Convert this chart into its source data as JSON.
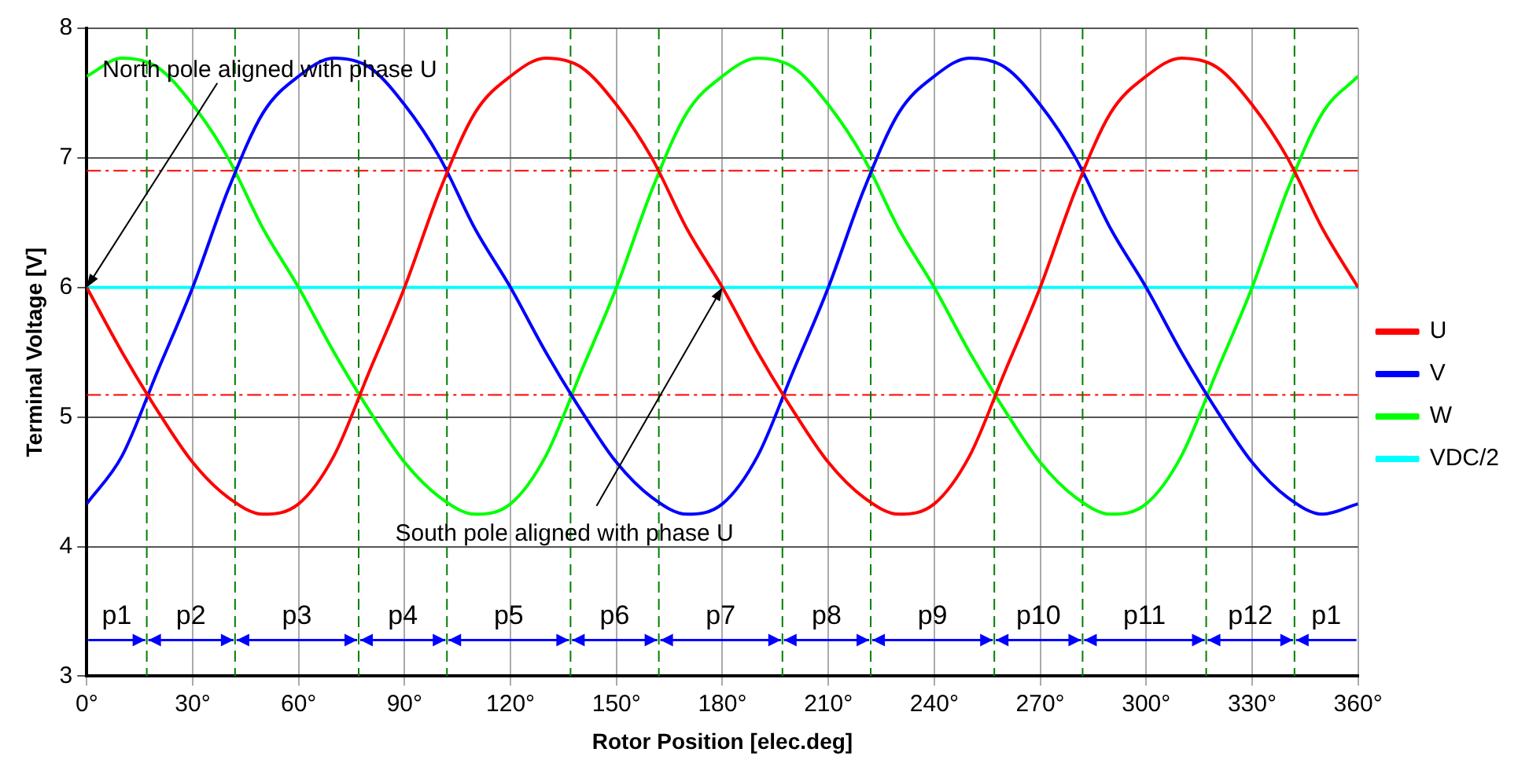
{
  "chart_data": {
    "type": "line",
    "xlabel": "Rotor Position [elec.deg]",
    "ylabel": "Terminal Voltage [V]",
    "x": [
      0,
      10,
      20,
      30,
      40,
      50,
      60,
      70,
      80,
      90,
      100,
      110,
      120,
      130,
      140,
      150,
      160,
      170,
      180,
      190,
      200,
      210,
      220,
      230,
      240,
      250,
      260,
      270,
      280,
      290,
      300,
      310,
      320,
      330,
      340,
      350,
      360
    ],
    "series": [
      {
        "name": "U",
        "color": "#ff0000",
        "values": [
          6.0,
          5.5,
          5.05,
          4.65,
          4.38,
          4.25,
          4.33,
          4.7,
          5.35,
          6.0,
          6.75,
          7.35,
          7.63,
          7.77,
          7.7,
          7.41,
          7.0,
          6.45,
          6.0,
          5.5,
          5.05,
          4.65,
          4.38,
          4.25,
          4.33,
          4.7,
          5.35,
          6.0,
          6.75,
          7.35,
          7.63,
          7.77,
          7.7,
          7.41,
          7.0,
          6.45,
          6.0
        ]
      },
      {
        "name": "V",
        "color": "#0000ff",
        "values": [
          4.33,
          4.7,
          5.35,
          6.0,
          6.75,
          7.35,
          7.63,
          7.77,
          7.7,
          7.41,
          7.0,
          6.45,
          6.0,
          5.5,
          5.05,
          4.65,
          4.38,
          4.25,
          4.33,
          4.7,
          5.35,
          6.0,
          6.75,
          7.35,
          7.63,
          7.77,
          7.7,
          7.41,
          7.0,
          6.45,
          6.0,
          5.5,
          5.05,
          4.65,
          4.38,
          4.25,
          4.33
        ]
      },
      {
        "name": "W",
        "color": "#00ff00",
        "values": [
          7.63,
          7.77,
          7.7,
          7.41,
          7.0,
          6.45,
          6.0,
          5.5,
          5.05,
          4.65,
          4.38,
          4.25,
          4.33,
          4.7,
          5.35,
          6.0,
          6.75,
          7.35,
          7.63,
          7.77,
          7.7,
          7.41,
          7.0,
          6.45,
          6.0,
          5.5,
          5.05,
          4.65,
          4.38,
          4.25,
          4.33,
          4.7,
          5.35,
          6.0,
          6.75,
          7.35,
          7.63
        ]
      },
      {
        "name": "VDC/2",
        "color": "#00ffff",
        "x": [
          0,
          360
        ],
        "values": [
          6,
          6
        ]
      }
    ],
    "xlim": [
      0,
      360
    ],
    "xticks": [
      {
        "value": 0,
        "label": "0°"
      },
      {
        "value": 30,
        "label": "30°"
      },
      {
        "value": 60,
        "label": "60°"
      },
      {
        "value": 90,
        "label": "90°"
      },
      {
        "value": 120,
        "label": "120°"
      },
      {
        "value": 150,
        "label": "150°"
      },
      {
        "value": 180,
        "label": "180°"
      },
      {
        "value": 210,
        "label": "210°"
      },
      {
        "value": 240,
        "label": "240°"
      },
      {
        "value": 270,
        "label": "270°"
      },
      {
        "value": 300,
        "label": "300°"
      },
      {
        "value": 330,
        "label": "330°"
      },
      {
        "value": 360,
        "label": "360°"
      }
    ],
    "ylim": [
      3,
      8
    ],
    "yticks": [
      3,
      4,
      5,
      6,
      7,
      8
    ],
    "grid": true,
    "legend": "right",
    "marker": "none",
    "line_style": "solid",
    "ref_lines": [
      {
        "axis": "y",
        "value": 6.9,
        "color": "#ff0000",
        "line_style": "dashed"
      },
      {
        "axis": "y",
        "value": 5.17,
        "color": "#ff0000",
        "line_style": "dashed"
      },
      {
        "axis": "x",
        "value": 17,
        "color": "#008000",
        "line_style": "dashed"
      },
      {
        "axis": "x",
        "value": 42,
        "color": "#008000",
        "line_style": "dashed"
      },
      {
        "axis": "x",
        "value": 77,
        "color": "#008000",
        "line_style": "dashed"
      },
      {
        "axis": "x",
        "value": 102,
        "color": "#008000",
        "line_style": "dashed"
      },
      {
        "axis": "x",
        "value": 137,
        "color": "#008000",
        "line_style": "dashed"
      },
      {
        "axis": "x",
        "value": 162,
        "color": "#008000",
        "line_style": "dashed"
      },
      {
        "axis": "x",
        "value": 197,
        "color": "#008000",
        "line_style": "dashed"
      },
      {
        "axis": "x",
        "value": 222,
        "color": "#008000",
        "line_style": "dashed"
      },
      {
        "axis": "x",
        "value": 257,
        "color": "#008000",
        "line_style": "dashed"
      },
      {
        "axis": "x",
        "value": 282,
        "color": "#008000",
        "line_style": "dashed"
      },
      {
        "axis": "x",
        "value": 317,
        "color": "#008000",
        "line_style": "dashed"
      },
      {
        "axis": "x",
        "value": 342,
        "color": "#008000",
        "line_style": "dashed"
      }
    ],
    "annotations": [
      {
        "text": "North pole aligned with phase U",
        "x": 0,
        "y": 6
      },
      {
        "text": "South pole aligned with phase U",
        "x": 180,
        "y": 6
      },
      "p1",
      "p2",
      "p3",
      "p4",
      "p5",
      "p6",
      "p7",
      "p8",
      "p9",
      "p10",
      "p11",
      "p12",
      "p1"
    ]
  }
}
